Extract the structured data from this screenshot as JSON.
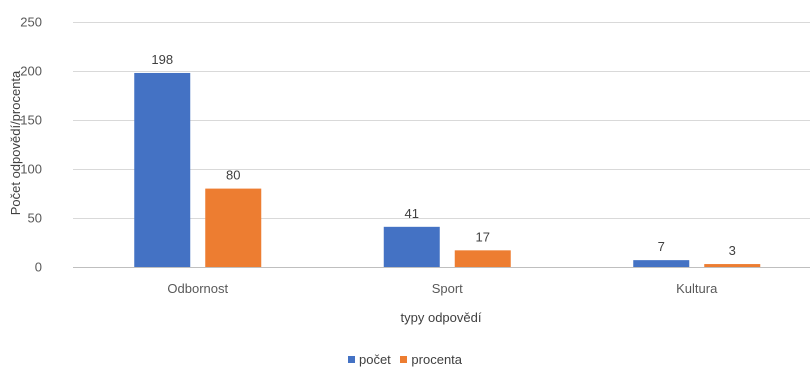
{
  "chart_data": {
    "type": "bar",
    "categories": [
      "Odbornost",
      "Sport",
      "Kultura"
    ],
    "series": [
      {
        "name": "počet",
        "values": [
          198,
          41,
          7
        ],
        "color": "#4472C4"
      },
      {
        "name": "procenta",
        "values": [
          80,
          17,
          3
        ],
        "color": "#ED7D31"
      }
    ],
    "xlabel": "typy odpovědí",
    "ylabel": "Počet odpovědí/procenta",
    "ylim": [
      0,
      250
    ],
    "yticks": [
      0,
      50,
      100,
      150,
      200,
      250
    ],
    "grid": true,
    "legend_position": "bottom"
  }
}
